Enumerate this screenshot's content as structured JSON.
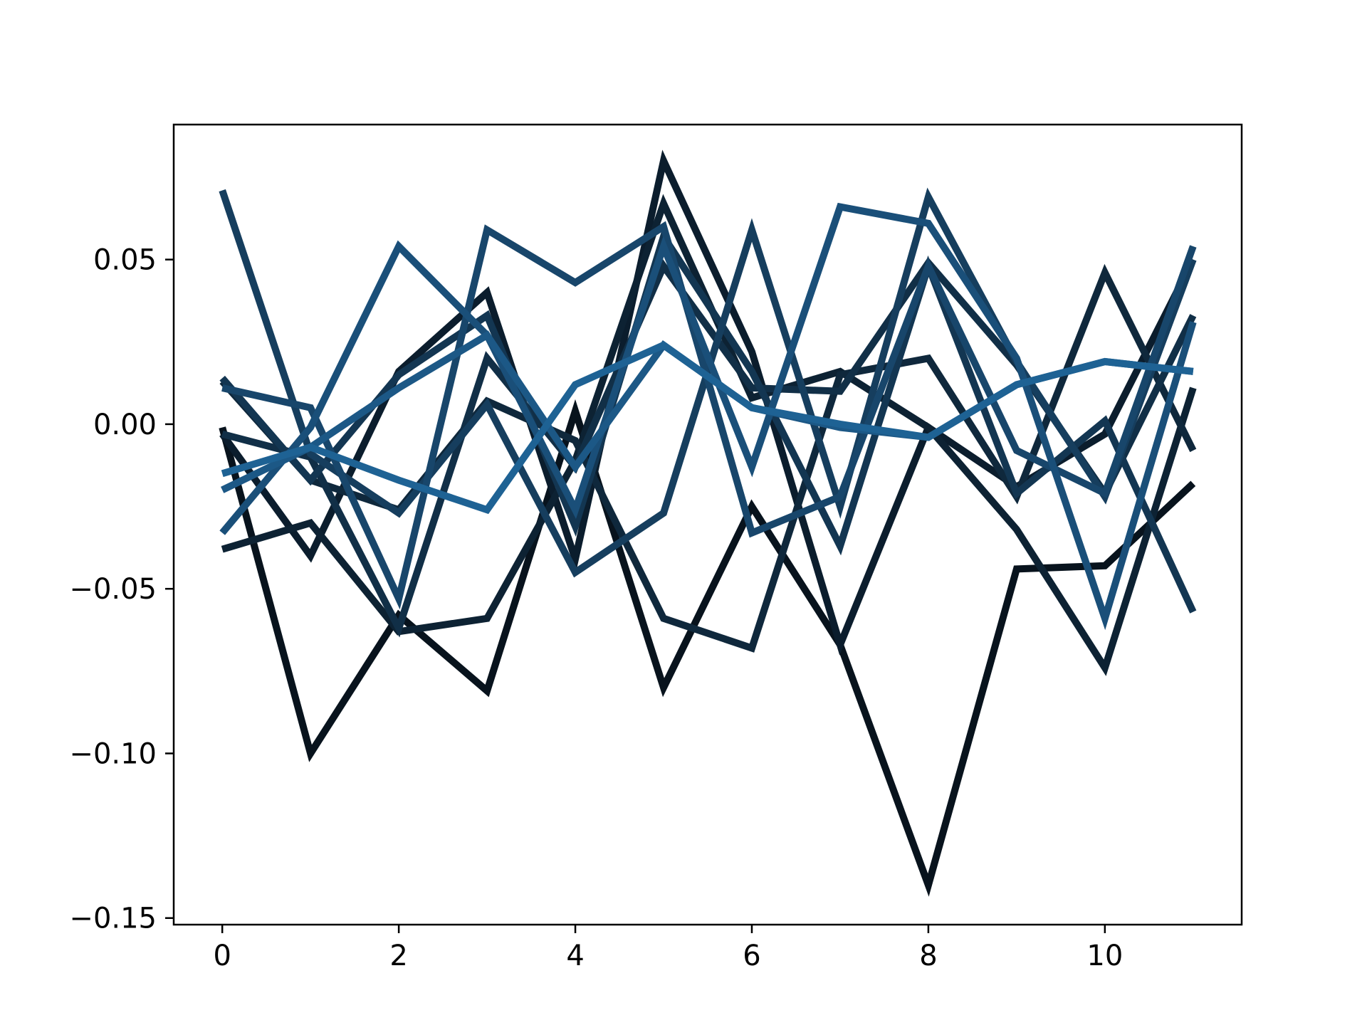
{
  "chart_data": {
    "type": "line",
    "title": "",
    "xlabel": "",
    "ylabel": "",
    "xlim": [
      -0.55,
      11.55
    ],
    "ylim": [
      -0.152,
      0.091
    ],
    "grid": false,
    "legend": "none",
    "x": [
      0,
      1,
      2,
      3,
      4,
      5,
      6,
      7,
      8,
      9,
      10,
      11
    ],
    "xticks": [
      {
        "value": 0,
        "label": "0"
      },
      {
        "value": 2,
        "label": "2"
      },
      {
        "value": 4,
        "label": "4"
      },
      {
        "value": 6,
        "label": "6"
      },
      {
        "value": 8,
        "label": "8"
      },
      {
        "value": 10,
        "label": "10"
      }
    ],
    "yticks": [
      {
        "value": 0.05,
        "label": "0.05"
      },
      {
        "value": 0.0,
        "label": "0.00"
      },
      {
        "value": -0.05,
        "label": "−0.05"
      },
      {
        "value": -0.1,
        "label": "−0.10"
      },
      {
        "value": -0.15,
        "label": "−0.15"
      }
    ],
    "series": [
      {
        "color": "#08131d",
        "values": [
          -0.001,
          -0.1,
          -0.058,
          -0.081,
          0.004,
          -0.08,
          -0.025,
          -0.067,
          -0.14,
          -0.044,
          -0.043,
          -0.018
        ]
      },
      {
        "color": "#0b1d2d",
        "values": [
          -0.003,
          -0.04,
          0.016,
          0.04,
          -0.041,
          0.08,
          0.022,
          -0.067,
          -0.001,
          -0.019,
          -0.003,
          0.05
        ]
      },
      {
        "color": "#0d2233",
        "values": [
          -0.038,
          -0.03,
          -0.063,
          -0.059,
          -0.011,
          0.067,
          0.008,
          0.016,
          -0.001,
          -0.032,
          -0.074,
          0.011
        ]
      },
      {
        "color": "#0f283c",
        "values": [
          0.013,
          -0.017,
          -0.026,
          0.007,
          -0.005,
          -0.059,
          -0.068,
          0.015,
          0.02,
          -0.022,
          0.046,
          -0.008
        ]
      },
      {
        "color": "#112f47",
        "values": [
          -0.003,
          -0.01,
          -0.062,
          0.02,
          -0.013,
          0.048,
          0.011,
          0.01,
          0.049,
          0.018,
          -0.021,
          0.033
        ]
      },
      {
        "color": "#133652",
        "values": [
          0.014,
          -0.017,
          0.015,
          0.033,
          -0.031,
          0.057,
          0.016,
          -0.037,
          0.048,
          -0.021,
          0.001,
          -0.057
        ]
      },
      {
        "color": "#163e5e",
        "values": [
          0.071,
          -0.009,
          -0.027,
          0.006,
          -0.045,
          -0.027,
          0.059,
          -0.025,
          0.069,
          0.019,
          -0.022,
          0.05
        ]
      },
      {
        "color": "#18466b",
        "values": [
          0.011,
          0.005,
          -0.053,
          0.059,
          0.043,
          0.06,
          -0.033,
          -0.022,
          0.048,
          -0.008,
          -0.021,
          0.054
        ]
      },
      {
        "color": "#1a4f79",
        "values": [
          -0.033,
          -0.001,
          0.054,
          0.027,
          -0.026,
          0.054,
          -0.013,
          0.066,
          0.061,
          0.02,
          -0.059,
          0.031
        ]
      },
      {
        "color": "#1c5886",
        "values": [
          -0.02,
          -0.007,
          0.011,
          0.027,
          -0.013,
          0.024,
          0.005,
          -0.001,
          -0.004,
          0.012,
          0.019,
          0.016
        ]
      },
      {
        "color": "#1e6294",
        "values": [
          -0.015,
          -0.007,
          -0.017,
          -0.026,
          0.012,
          0.024,
          0.005,
          0.0,
          -0.004,
          0.012,
          0.019,
          0.016
        ]
      }
    ]
  }
}
